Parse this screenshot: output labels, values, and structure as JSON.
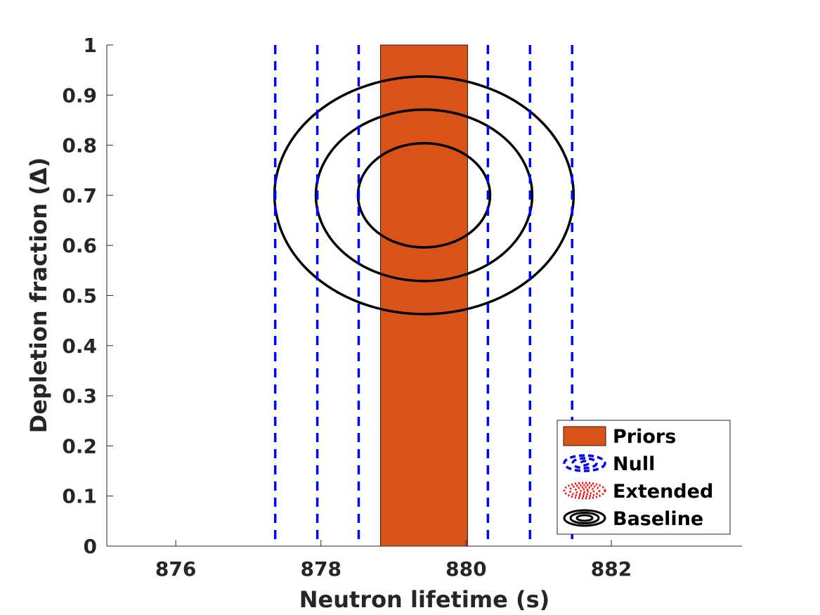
{
  "chart_data": {
    "type": "contour",
    "xlabel": "Neutron lifetime (s)",
    "ylabel": "Depletion fraction (Δ)",
    "xlim": [
      875.05,
      883.8
    ],
    "ylim": [
      0,
      1
    ],
    "xticks": [
      "876",
      "878",
      "880",
      "882"
    ],
    "xtick_values": [
      876,
      878,
      880,
      882
    ],
    "yticks": [
      "0",
      "0.1",
      "0.2",
      "0.3",
      "0.4",
      "0.5",
      "0.6",
      "0.7",
      "0.8",
      "0.9",
      "1"
    ],
    "ytick_values": [
      0,
      0.1,
      0.2,
      0.3,
      0.4,
      0.5,
      0.6,
      0.7,
      0.8,
      0.9,
      1
    ],
    "grid": false,
    "legend_position": "bottom-right",
    "series": [
      {
        "name": "Priors",
        "kind": "band",
        "color": "#D95319",
        "x_range": [
          878.82,
          880.02
        ],
        "y_range": [
          0,
          1
        ]
      },
      {
        "name": "Null",
        "kind": "vertical-dashed-lines",
        "color": "#0000FF",
        "x_values": [
          877.37,
          877.95,
          878.52,
          880.3,
          880.88,
          881.46
        ]
      },
      {
        "name": "Extended",
        "kind": "dotted-contours",
        "color": "#FF0000",
        "contours": []
      },
      {
        "name": "Baseline",
        "kind": "contours",
        "color": "#000000",
        "center": [
          879.42,
          0.7
        ],
        "contours": [
          {
            "x_half_width": 0.91,
            "y_half_height": 0.104
          },
          {
            "x_half_width": 1.49,
            "y_half_height": 0.171
          },
          {
            "x_half_width": 2.06,
            "y_half_height": 0.237
          }
        ]
      }
    ]
  }
}
